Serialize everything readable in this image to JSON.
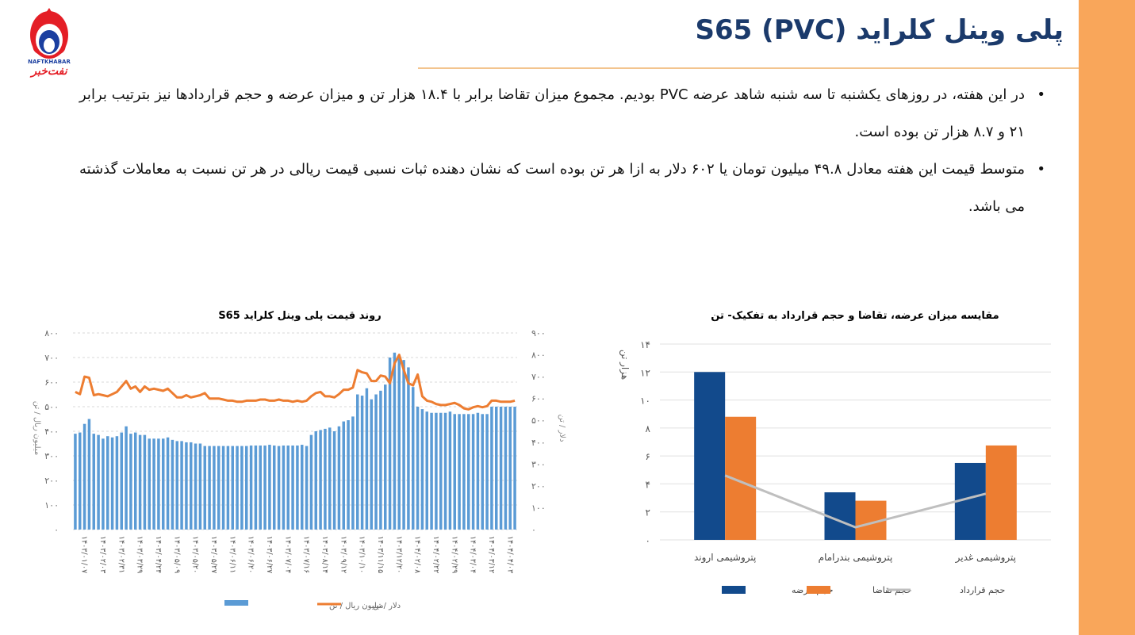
{
  "title": "پلی وینل کلراید (PVC) S65",
  "logo": {
    "latin": "NAFTKHABAR",
    "persian": "نفت‌خبر"
  },
  "colors": {
    "accent_bar": "#f9a65a",
    "title": "#1b3a6b",
    "blue": "#5b9bd5",
    "orange": "#ed7d31",
    "dark_blue": "#124a8c",
    "gray": "#bfbfbf"
  },
  "bullets": [
    "در این هفته، در روزهای یکشنبه تا سه شنبه شاهد عرضه PVC بودیم. مجموع میزان تقاضا برابر با ۱۸.۴ هزار تن و میزان عرضه و حجم قراردادها نیز بترتیب برابر ۲۱ و ۸.۷ هزار تن بوده است.",
    "متوسط قیمت این هفته معادل ۴۹.۸ میلیون تومان یا ۶۰۲ دلار به ازا هر تن بوده است که نشان دهنده ثبات نسبی قیمت ریالی در هر تن نسبت به معاملات گذشته می باشد."
  ],
  "chart_data": [
    {
      "type": "bar",
      "title": "مقایسه میزان عرضه، تقاضا و حجم قرارداد به تفکیک- تن",
      "ylabel": "هزار تن",
      "ylim": [
        0,
        14
      ],
      "yticks": [
        "۰",
        "۲",
        "۴",
        "۶",
        "۸",
        "۱۰",
        "۱۲",
        "۱۴"
      ],
      "categories": [
        "پتروشیمی اروند",
        "پتروشیمی بندرامام",
        "پتروشیمی غدیر"
      ],
      "series": [
        {
          "name": "حجم عرضه",
          "kind": "bar",
          "color": "#124a8c",
          "values": [
            12,
            3.4,
            5.5
          ]
        },
        {
          "name": "حجم تقاضا",
          "kind": "bar",
          "color": "#ed7d31",
          "values": [
            8.8,
            2.8,
            6.75
          ]
        },
        {
          "name": "حجم قرارداد",
          "kind": "line",
          "color": "#bfbfbf",
          "values": [
            4.6,
            0.9,
            3.3
          ]
        }
      ],
      "legend": "bottom"
    },
    {
      "type": "bar",
      "title": "روند قیمت پلی وینل کلراید S65",
      "ylabel_left": "میلیون ریال / تن",
      "ylabel_right": "دلار / تن",
      "ylim_left": [
        0,
        800
      ],
      "ylim_right": [
        0,
        900
      ],
      "yticks_left": [
        "۰",
        "۱۰۰",
        "۲۰۰",
        "۳۰۰",
        "۴۰۰",
        "۵۰۰",
        "۶۰۰",
        "۷۰۰",
        "۸۰۰"
      ],
      "yticks_right": [
        "۰",
        "۱۰۰",
        "۲۰۰",
        "۳۰۰",
        "۴۰۰",
        "۵۰۰",
        "۶۰۰",
        "۷۰۰",
        "۸۰۰",
        "۹۰۰"
      ],
      "x_tick_labels": [
        "۱۴۰۳/۰۱/۰۷",
        "۱۴۰۳/۰۲/۰۳",
        "۱۴۰۳/۰۲/۳۱",
        "۱۴۰۳/۰۳/۲۹",
        "۱۴۰۳/۰۴/۲۴",
        "۱۴۰۳/۰۵/۰۹",
        "۱۴۰۳/۰۵/۲۰",
        "۱۴۰۳/۰۵/۲۷",
        "۱۴۰۳/۰۶/۱۱",
        "۱۴۰۳/۰۶/۲۰",
        "۱۴۰۳/۰۶/۲۷",
        "۱۴۰۳/۰۷/۰۴",
        "۱۴۰۳/۰۷/۱۶",
        "۱۴۰۳/۰۸/۱۴",
        "۱۴۰۳/۰۹/۱۲",
        "۱۴۰۳/۱۰/۱۰",
        "۱۴۰۳/۱۱/۱۵",
        "۱۴۰۳/۱۲/۲۰",
        "۱۴۰۴/۰۲/۰۸",
        "۱۴۰۴/۰۲/۲۲",
        "۱۴۰۴/۰۲/۲۹",
        "۱۴۰۴/۰۳/۰۴",
        "۱۴۰۴/۰۳/۱۲",
        "۱۴۰۴/۰۴/۰۳"
      ],
      "series": [
        {
          "name": "میلیون ریال / تن",
          "kind": "bar",
          "axis": "left",
          "color": "#5b9bd5",
          "values": [
            390,
            395,
            430,
            450,
            390,
            385,
            370,
            380,
            375,
            380,
            395,
            420,
            390,
            395,
            385,
            385,
            370,
            370,
            370,
            370,
            375,
            365,
            360,
            360,
            355,
            355,
            350,
            350,
            340,
            340,
            340,
            340,
            340,
            340,
            340,
            340,
            340,
            340,
            342,
            342,
            342,
            342,
            345,
            342,
            340,
            342,
            342,
            342,
            342,
            345,
            340,
            385,
            400,
            405,
            410,
            415,
            400,
            420,
            440,
            445,
            460,
            550,
            545,
            575,
            530,
            550,
            565,
            590,
            700,
            720,
            700,
            690,
            660,
            580,
            500,
            490,
            480,
            475,
            475,
            475,
            475,
            480,
            470,
            470,
            470,
            470,
            470,
            475,
            470,
            470,
            500,
            500,
            500,
            500,
            500,
            500
          ]
        },
        {
          "name": "دلار / تن",
          "kind": "line",
          "axis": "right",
          "color": "#ed7d31",
          "values": [
            630,
            620,
            700,
            695,
            615,
            620,
            615,
            610,
            620,
            630,
            655,
            680,
            645,
            655,
            630,
            655,
            640,
            645,
            640,
            635,
            645,
            625,
            605,
            605,
            615,
            605,
            610,
            615,
            625,
            600,
            600,
            600,
            595,
            590,
            590,
            585,
            585,
            590,
            590,
            590,
            595,
            595,
            590,
            590,
            595,
            590,
            590,
            585,
            590,
            585,
            590,
            610,
            625,
            630,
            610,
            610,
            605,
            620,
            640,
            640,
            650,
            730,
            720,
            715,
            680,
            680,
            705,
            700,
            670,
            760,
            800,
            730,
            670,
            660,
            710,
            610,
            590,
            585,
            575,
            570,
            570,
            575,
            580,
            570,
            555,
            550,
            560,
            565,
            560,
            565,
            590,
            590,
            585,
            585,
            585,
            590
          ]
        }
      ],
      "legend": "bottom"
    }
  ]
}
